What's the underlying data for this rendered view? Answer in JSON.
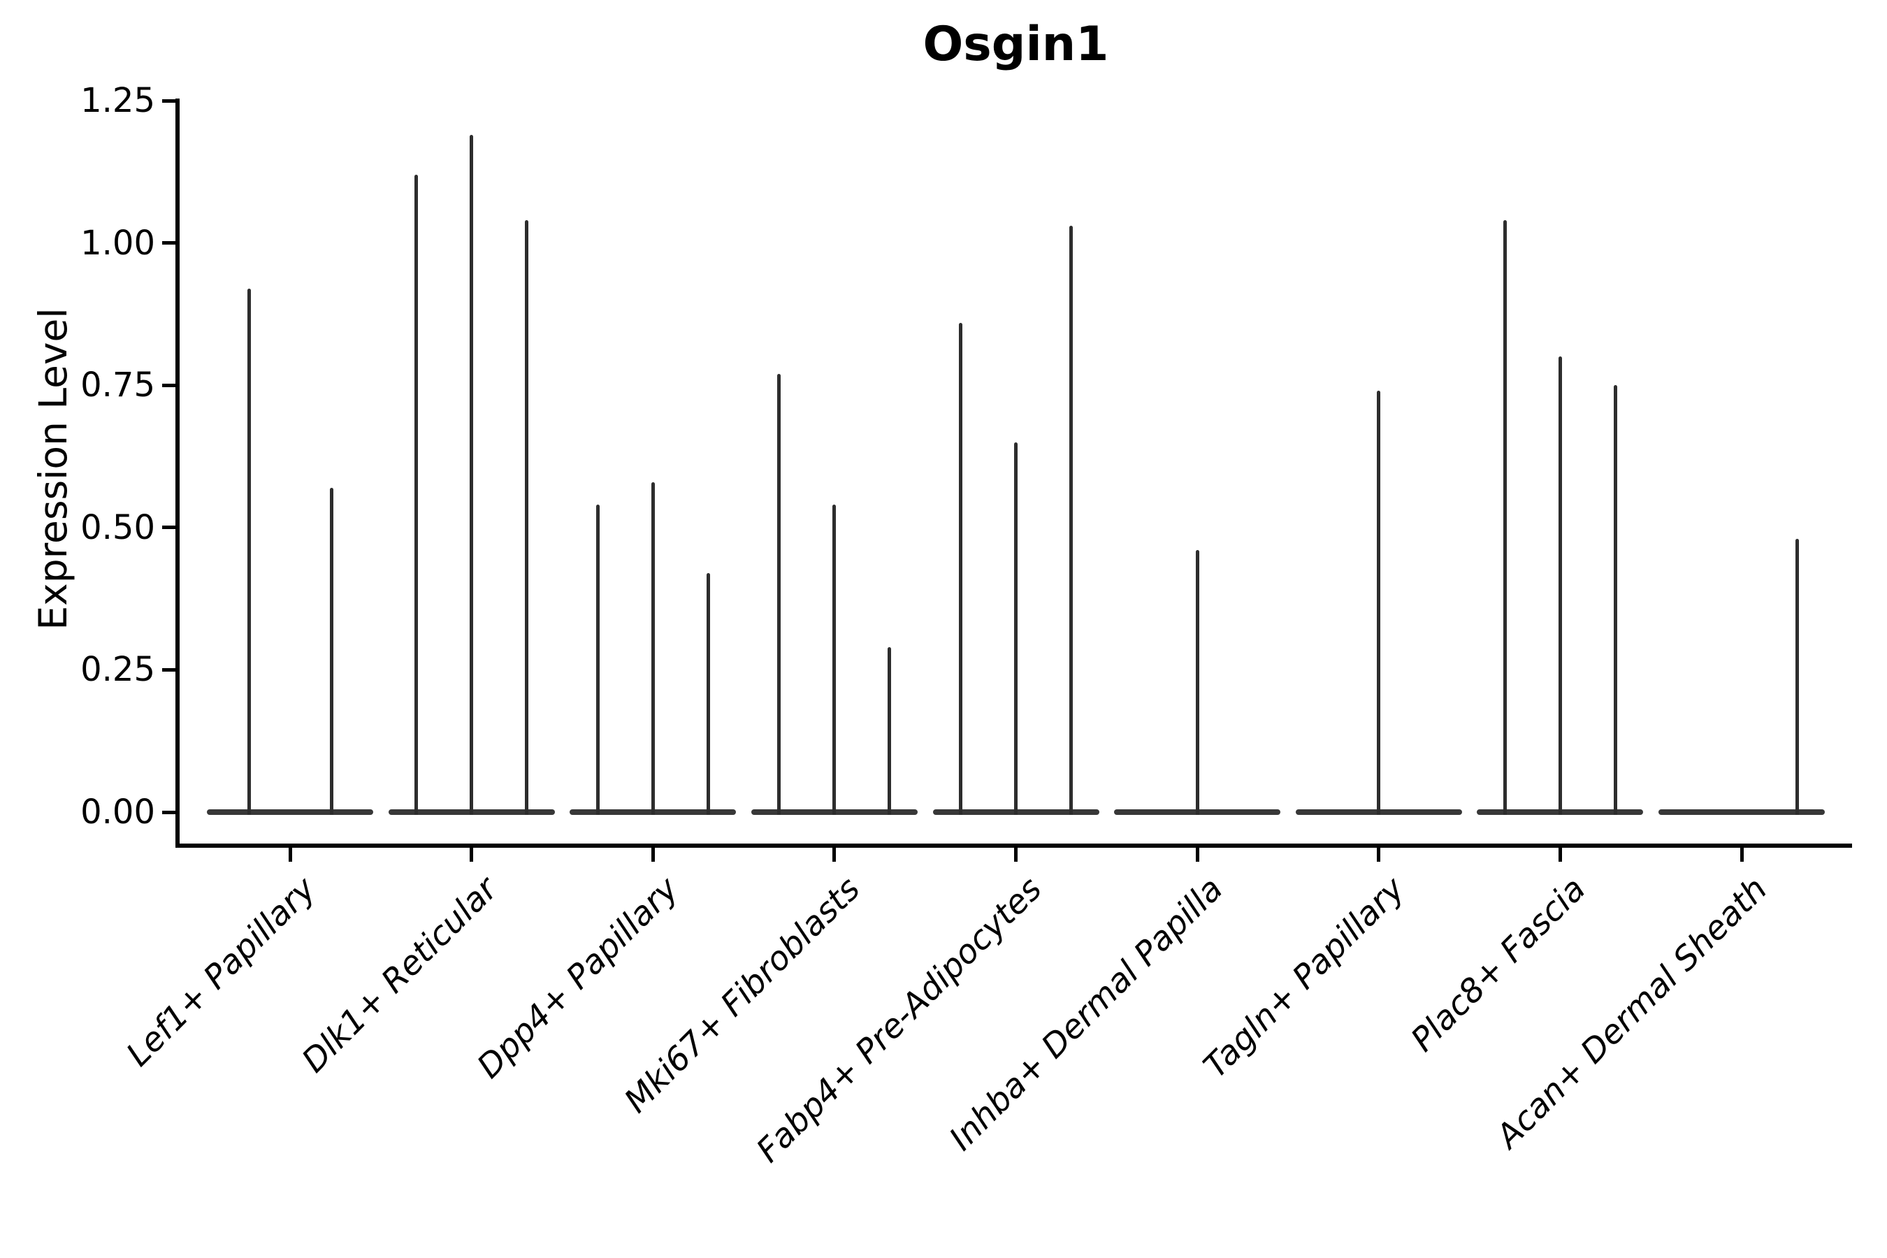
{
  "figure": {
    "title": "Osgin1",
    "y_axis_label": "Expression Level"
  },
  "chart_data": {
    "type": "violin",
    "title": "Osgin1",
    "xlabel": "",
    "ylabel": "Expression Level",
    "ylim": [
      0,
      1.25
    ],
    "grid": false,
    "legend": null,
    "y_ticks": {
      "values": [
        0,
        0.25,
        0.5,
        0.75,
        1.0,
        1.25
      ],
      "labels": [
        "0.00",
        "0.25",
        "0.50",
        "0.75",
        "1.00",
        "1.25"
      ]
    },
    "categories": [
      "Lef1+ Papillary",
      "Dlk1+ Reticular",
      "Dpp4+ Papillary",
      "Mki67+ Fibroblasts",
      "Fabp4+ Pre-Adipocytes",
      "Inhba+ Dermal Papilla",
      "Tagln+ Papillary",
      "Plac8+ Fascia",
      "Acan+ Dermal Sheath"
    ],
    "series": [
      {
        "category": "Lef1+ Papillary",
        "n_slots": 2,
        "violins": [
          {
            "slot": 0,
            "max": 0.92
          },
          {
            "slot": 1,
            "max": 0.57
          }
        ]
      },
      {
        "category": "Dlk1+ Reticular",
        "n_slots": 3,
        "violins": [
          {
            "slot": 0,
            "max": 1.12
          },
          {
            "slot": 1,
            "max": 1.19
          },
          {
            "slot": 2,
            "max": 1.04
          }
        ]
      },
      {
        "category": "Dpp4+ Papillary",
        "n_slots": 3,
        "violins": [
          {
            "slot": 0,
            "max": 0.54
          },
          {
            "slot": 1,
            "max": 0.58
          },
          {
            "slot": 2,
            "max": 0.42
          }
        ]
      },
      {
        "category": "Mki67+ Fibroblasts",
        "n_slots": 3,
        "violins": [
          {
            "slot": 0,
            "max": 0.77
          },
          {
            "slot": 1,
            "max": 0.54
          },
          {
            "slot": 2,
            "max": 0.29
          }
        ]
      },
      {
        "category": "Fabp4+ Pre-Adipocytes",
        "n_slots": 3,
        "violins": [
          {
            "slot": 0,
            "max": 0.86
          },
          {
            "slot": 1,
            "max": 0.65
          },
          {
            "slot": 2,
            "max": 1.03
          }
        ]
      },
      {
        "category": "Inhba+ Dermal Papilla",
        "n_slots": 3,
        "violins": [
          {
            "slot": 1,
            "max": 0.46
          }
        ]
      },
      {
        "category": "Tagln+ Papillary",
        "n_slots": 3,
        "violins": [
          {
            "slot": 1,
            "max": 0.74
          }
        ]
      },
      {
        "category": "Plac8+ Fascia",
        "n_slots": 3,
        "violins": [
          {
            "slot": 0,
            "max": 1.04
          },
          {
            "slot": 1,
            "max": 0.8
          },
          {
            "slot": 2,
            "max": 0.75
          }
        ]
      },
      {
        "category": "Acan+ Dermal Sheath",
        "n_slots": 3,
        "violins": [
          {
            "slot": 2,
            "max": 0.48
          }
        ]
      }
    ],
    "colors": {
      "violin": "#2d2d2d",
      "violin_base": "#383838",
      "axis": "#000000",
      "text": "#000000"
    }
  }
}
